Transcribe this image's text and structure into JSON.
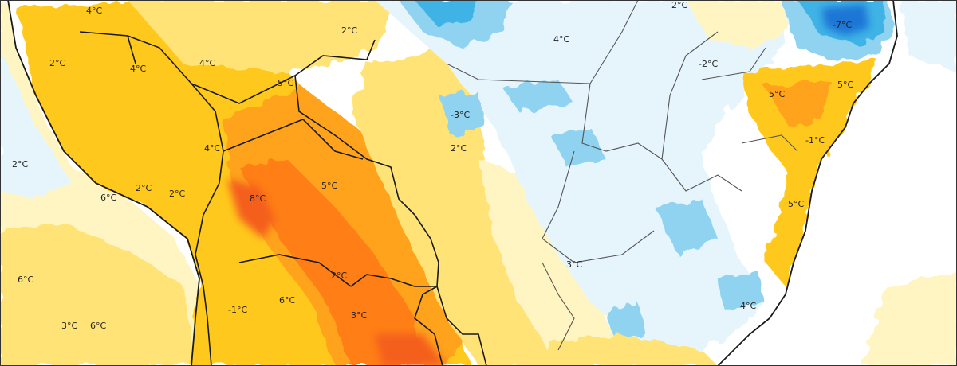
{
  "colors": {
    "ocean": "#ffffff",
    "cold_light": "#e6f5fc",
    "cold_mid": "#8fd3f1",
    "cold_strong": "#41b3e6",
    "cold_deep": "#1a76d6",
    "neutral": "#ffffff",
    "warm_pale": "#fff5c2",
    "warm_light": "#ffe377",
    "warm_mid": "#ffc81c",
    "warm_orange": "#ffa21d",
    "warm_deep": "#ff7e17",
    "hot": "#f45f1b",
    "border": "#1a1a1a",
    "state_line": "#555555"
  },
  "labels": [
    {
      "id": "a1",
      "text": "4°C"
    },
    {
      "id": "a2",
      "text": "2°C"
    },
    {
      "id": "a3",
      "text": "4°C"
    },
    {
      "id": "a4",
      "text": "4°C"
    },
    {
      "id": "a5",
      "text": "5°C"
    },
    {
      "id": "a6",
      "text": "2°C"
    },
    {
      "id": "a7",
      "text": "4°C"
    },
    {
      "id": "a8",
      "text": "2°C"
    },
    {
      "id": "a9",
      "text": "-7°C"
    },
    {
      "id": "a10",
      "text": "-2°C"
    },
    {
      "id": "a11",
      "text": "5°C"
    },
    {
      "id": "a12",
      "text": "5°C"
    },
    {
      "id": "a13",
      "text": "-3°C"
    },
    {
      "id": "a14",
      "text": "2°C"
    },
    {
      "id": "a15",
      "text": "4°C"
    },
    {
      "id": "a16",
      "text": "2°C"
    },
    {
      "id": "a17",
      "text": "2°C"
    },
    {
      "id": "a18",
      "text": "2°C"
    },
    {
      "id": "a19",
      "text": "6°C"
    },
    {
      "id": "a20",
      "text": "8°C"
    },
    {
      "id": "a21",
      "text": "5°C"
    },
    {
      "id": "a22",
      "text": "5°C"
    },
    {
      "id": "a23",
      "text": "-1°C"
    },
    {
      "id": "a24",
      "text": "3°C"
    },
    {
      "id": "a25",
      "text": "6°C"
    },
    {
      "id": "a26",
      "text": "2°C"
    },
    {
      "id": "a27",
      "text": "6°C"
    },
    {
      "id": "a28",
      "text": "3°C"
    },
    {
      "id": "a29",
      "text": "3°C"
    },
    {
      "id": "a30",
      "text": "6°C"
    },
    {
      "id": "a31",
      "text": "-1°C"
    },
    {
      "id": "a32",
      "text": "4°C"
    }
  ]
}
